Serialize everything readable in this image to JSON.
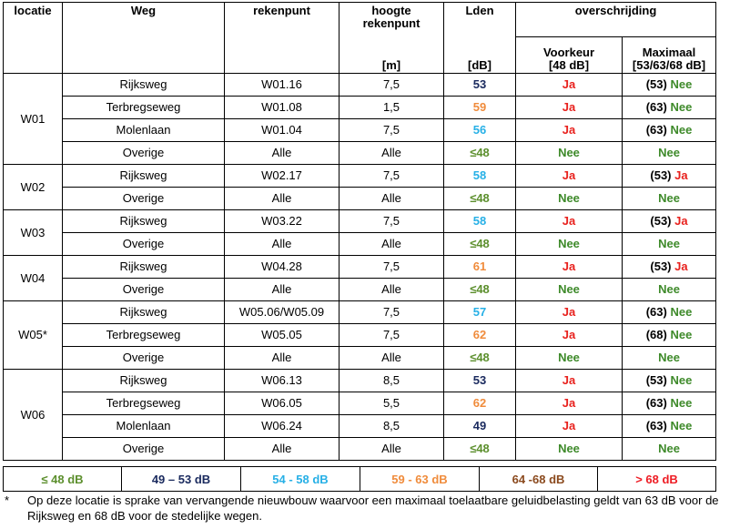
{
  "headers": {
    "locatie": "locatie",
    "weg": "Weg",
    "rekenpunt": "rekenpunt",
    "hoogte_line1": "hoogte",
    "hoogte_line2": "rekenpunt",
    "lden": "Lden",
    "overschrijding": "overschrijding",
    "voorkeur_line1": "Voorkeur",
    "voorkeur_line2": "[48 dB]",
    "maximaal_line1": "Maximaal",
    "maximaal_line2": "[53/63/68 dB]",
    "unit_m": "[m]",
    "unit_db": "[dB]"
  },
  "colors": {
    "le48": "#5c8f2d",
    "r49_53": "#1a2a5e",
    "r54_58": "#27b0e6",
    "r59_63": "#f08c3c",
    "r64_68": "#8b4a1e",
    "gt68": "#ee1c24",
    "ja": "#e8211d",
    "nee": "#3e8a2a"
  },
  "rows": [
    {
      "locatie": "W01",
      "weg": "Rijksweg",
      "rekenpunt": "W01.16",
      "hoogte": "7,5",
      "lden": "53",
      "lden_class": "c53",
      "voorkeur": "Ja",
      "max_prefix": "(53)",
      "max_val": "Nee"
    },
    {
      "locatie": "",
      "weg": "Terbregseweg",
      "rekenpunt": "W01.08",
      "hoogte": "1,5",
      "lden": "59",
      "lden_class": "c63",
      "voorkeur": "Ja",
      "max_prefix": "(63)",
      "max_val": "Nee"
    },
    {
      "locatie": "",
      "weg": "Molenlaan",
      "rekenpunt": "W01.04",
      "hoogte": "7,5",
      "lden": "56",
      "lden_class": "c58",
      "voorkeur": "Ja",
      "max_prefix": "(63)",
      "max_val": "Nee"
    },
    {
      "locatie": "",
      "weg": "Overige",
      "rekenpunt": "Alle",
      "hoogte": "Alle",
      "lden": "≤48",
      "lden_class": "c48",
      "voorkeur": "Nee",
      "max_prefix": "",
      "max_val": "Nee"
    },
    {
      "locatie": "W02",
      "weg": "Rijksweg",
      "rekenpunt": "W02.17",
      "hoogte": "7,5",
      "lden": "58",
      "lden_class": "c58",
      "voorkeur": "Ja",
      "max_prefix": "(53)",
      "max_val": "Ja"
    },
    {
      "locatie": "",
      "weg": "Overige",
      "rekenpunt": "Alle",
      "hoogte": "Alle",
      "lden": "≤48",
      "lden_class": "c48",
      "voorkeur": "Nee",
      "max_prefix": "",
      "max_val": "Nee"
    },
    {
      "locatie": "W03",
      "weg": "Rijksweg",
      "rekenpunt": "W03.22",
      "hoogte": "7,5",
      "lden": "58",
      "lden_class": "c58",
      "voorkeur": "Ja",
      "max_prefix": "(53)",
      "max_val": "Ja"
    },
    {
      "locatie": "",
      "weg": "Overige",
      "rekenpunt": "Alle",
      "hoogte": "Alle",
      "lden": "≤48",
      "lden_class": "c48",
      "voorkeur": "Nee",
      "max_prefix": "",
      "max_val": "Nee"
    },
    {
      "locatie": "W04",
      "weg": "Rijksweg",
      "rekenpunt": "W04.28",
      "hoogte": "7,5",
      "lden": "61",
      "lden_class": "c63",
      "voorkeur": "Ja",
      "max_prefix": "(53)",
      "max_val": "Ja"
    },
    {
      "locatie": "",
      "weg": "Overige",
      "rekenpunt": "Alle",
      "hoogte": "Alle",
      "lden": "≤48",
      "lden_class": "c48",
      "voorkeur": "Nee",
      "max_prefix": "",
      "max_val": "Nee"
    },
    {
      "locatie": "W05*",
      "weg": "Rijksweg",
      "rekenpunt": "W05.06/W05.09",
      "hoogte": "7,5",
      "lden": "57",
      "lden_class": "c58",
      "voorkeur": "Ja",
      "max_prefix": "(63)",
      "max_val": "Nee"
    },
    {
      "locatie": "",
      "weg": "Terbregseweg",
      "rekenpunt": "W05.05",
      "hoogte": "7,5",
      "lden": "62",
      "lden_class": "c63",
      "voorkeur": "Ja",
      "max_prefix": "(68)",
      "max_val": "Nee"
    },
    {
      "locatie": "",
      "weg": "Overige",
      "rekenpunt": "Alle",
      "hoogte": "Alle",
      "lden": "≤48",
      "lden_class": "c48",
      "voorkeur": "Nee",
      "max_prefix": "",
      "max_val": "Nee"
    },
    {
      "locatie": "W06",
      "weg": "Rijksweg",
      "rekenpunt": "W06.13",
      "hoogte": "8,5",
      "lden": "53",
      "lden_class": "c53",
      "voorkeur": "Ja",
      "max_prefix": "(53)",
      "max_val": "Nee"
    },
    {
      "locatie": "",
      "weg": "Terbregseweg",
      "rekenpunt": "W06.05",
      "hoogte": "5,5",
      "lden": "62",
      "lden_class": "c63",
      "voorkeur": "Ja",
      "max_prefix": "(63)",
      "max_val": "Nee"
    },
    {
      "locatie": "",
      "weg": "Molenlaan",
      "rekenpunt": "W06.24",
      "hoogte": "8,5",
      "lden": "49",
      "lden_class": "c53",
      "voorkeur": "Ja",
      "max_prefix": "(63)",
      "max_val": "Nee"
    },
    {
      "locatie": "",
      "weg": "Overige",
      "rekenpunt": "Alle",
      "hoogte": "Alle",
      "lden": "≤48",
      "lden_class": "c48",
      "voorkeur": "Nee",
      "max_prefix": "",
      "max_val": "Nee"
    }
  ],
  "groups": [
    {
      "label": "W01",
      "start": 0,
      "span": 4
    },
    {
      "label": "W02",
      "start": 4,
      "span": 2
    },
    {
      "label": "W03",
      "start": 6,
      "span": 2
    },
    {
      "label": "W04",
      "start": 8,
      "span": 2
    },
    {
      "label": "W05*",
      "start": 10,
      "span": 3
    },
    {
      "label": "W06",
      "start": 13,
      "span": 4
    }
  ],
  "legend": [
    {
      "label": "≤ 48 dB",
      "cls": "c48"
    },
    {
      "label": "49 – 53 dB",
      "cls": "c53"
    },
    {
      "label": "54 - 58 dB",
      "cls": "c58"
    },
    {
      "label": "59 - 63 dB",
      "cls": "c63"
    },
    {
      "label": "64 -68 dB",
      "cls": "c68"
    },
    {
      "label": "> 68 dB",
      "cls": "cgt"
    }
  ],
  "footnote": {
    "marker": "*",
    "text": "Op deze locatie is sprake van vervangende nieuwbouw waarvoor een maximaal toelaatbare geluidbelasting geldt van 63 dB voor de Rijksweg en 68 dB voor de stedelijke wegen."
  }
}
